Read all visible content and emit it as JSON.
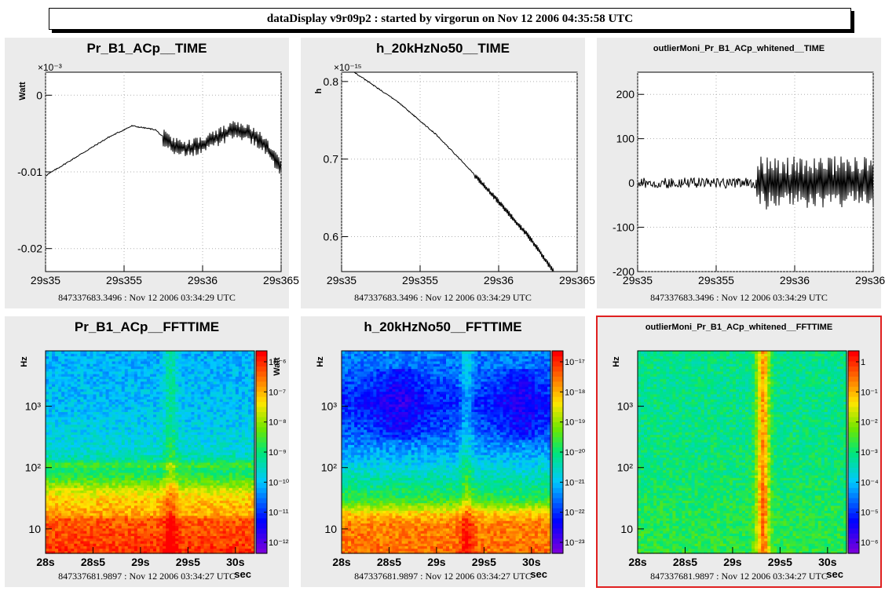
{
  "header": {
    "title": "dataDisplay v9r09p2 : started by virgorun on Nov 12 2006 04:35:58 UTC"
  },
  "colors": {
    "panel_bg": "#ebebeb",
    "frame": "#000000",
    "selected_border": "#e02020",
    "grid": "#b0b0b0"
  },
  "panels": [
    {
      "title": "Pr_B1_ACp__TIME",
      "footer": "847337683.3496 : Nov 12 2006 03:34:29 UTC"
    },
    {
      "title": "h_20kHzNo50__TIME",
      "footer": "847337683.3496 : Nov 12 2006 03:34:29 UTC"
    },
    {
      "title": "outlierMoni_Pr_B1_ACp_whitened__TIME",
      "footer": "847337683.3496 : Nov 12 2006 03:34:29 UTC"
    },
    {
      "title": "Pr_B1_ACp__FFTTIME",
      "footer": "847337681.9897 : Nov 12 2006 03:34:27 UTC"
    },
    {
      "title": "h_20kHzNo50__FFTTIME",
      "footer": "847337681.9897 : Nov 12 2006 03:34:27 UTC"
    },
    {
      "title": "outlierMoni_Pr_B1_ACp_whitened__FFTTIME",
      "footer": "847337681.9897 : Nov 12 2006 03:34:27 UTC"
    }
  ],
  "chart_data": [
    {
      "type": "line",
      "title": "Pr_B1_ACp__TIME",
      "ylabel": "Watt",
      "y_multiplier": "×10⁻³",
      "xlim": [
        29.35,
        29.365
      ],
      "ylim": [
        -0.023,
        0.003
      ],
      "xticks": [
        29.35,
        29.355,
        29.36,
        29.365
      ],
      "xtick_labels": [
        "29s35",
        "29s355",
        "29s36",
        "29s365"
      ],
      "yticks": [
        0,
        -0.01,
        -0.02
      ],
      "ytick_labels": [
        "0",
        "-0.01",
        "-0.02"
      ],
      "grid": true,
      "series": [
        {
          "x": [
            29.35,
            29.352,
            29.354,
            29.3555,
            29.357,
            29.358,
            29.359,
            29.36,
            29.361,
            29.362,
            29.363,
            29.364,
            29.365
          ],
          "y": [
            -0.0105,
            -0.008,
            -0.0055,
            -0.004,
            -0.0045,
            -0.0065,
            -0.007,
            -0.0065,
            -0.0055,
            -0.0045,
            -0.005,
            -0.0065,
            -0.0095
          ],
          "noise_after": 29.3575,
          "noise_amp": 0.0012
        }
      ]
    },
    {
      "type": "line",
      "title": "h_20kHzNo50__TIME",
      "ylabel": "h",
      "y_multiplier": "×10⁻¹⁵",
      "xlim": [
        29.35,
        29.365
      ],
      "ylim": [
        0.555,
        0.812
      ],
      "xticks": [
        29.35,
        29.355,
        29.36,
        29.365
      ],
      "xtick_labels": [
        "29s35",
        "29s355",
        "29s36",
        "29s365"
      ],
      "yticks": [
        0.8,
        0.7,
        0.6
      ],
      "ytick_labels": [
        "0.8",
        "0.7",
        "0.6"
      ],
      "grid": true,
      "series": [
        {
          "x": [
            29.3508,
            29.3535,
            29.356,
            29.358,
            29.36,
            29.362,
            29.3635
          ],
          "y": [
            0.812,
            0.775,
            0.732,
            0.69,
            0.645,
            0.598,
            0.555
          ],
          "noise_after": 29.3585,
          "noise_amp": 0.004
        }
      ]
    },
    {
      "type": "line",
      "title": "outlierMoni_Pr_B1_ACp_whitened__TIME",
      "ylabel": "",
      "xlim": [
        29.35,
        29.365
      ],
      "ylim": [
        -200,
        250
      ],
      "xticks": [
        29.35,
        29.355,
        29.36,
        29.365
      ],
      "xtick_labels": [
        "29s35",
        "29s355",
        "29s36",
        "29s365"
      ],
      "yticks": [
        200,
        100,
        0,
        -100,
        -200
      ],
      "ytick_labels": [
        "200",
        "100",
        "0",
        "-100",
        "-200"
      ],
      "grid": true,
      "series": [
        {
          "x": [
            29.35,
            29.3575,
            29.3576,
            29.365
          ],
          "y": [
            0,
            0,
            0,
            0
          ],
          "noise_before_amp": 12,
          "noise_after": 29.3576,
          "noise_amp": 60
        }
      ]
    },
    {
      "type": "heatmap",
      "title": "Pr_B1_ACp__FFTTIME",
      "ylabel": "Hz",
      "xlabel": "sec",
      "zlabel": "Watt",
      "xlim": [
        28,
        30.2
      ],
      "yscale": "log",
      "ylim": [
        4,
        8000
      ],
      "xticks": [
        28,
        28.5,
        29,
        29.5,
        30
      ],
      "xtick_labels": [
        "28s",
        "28s5",
        "29s",
        "29s5",
        "30s"
      ],
      "yticks": [
        10,
        100,
        1000
      ],
      "ytick_labels": [
        "10",
        "10²",
        "10³"
      ],
      "colorbar_labels": [
        "10⁻⁶",
        "10⁻⁷",
        "10⁻⁸",
        "10⁻⁹",
        "10⁻¹⁰",
        "10⁻¹¹",
        "10⁻¹²"
      ],
      "profile": [
        [
          4,
          0.95
        ],
        [
          15,
          0.9
        ],
        [
          17,
          0.82
        ],
        [
          30,
          0.78
        ],
        [
          45,
          0.7
        ],
        [
          60,
          0.6
        ],
        [
          90,
          0.5
        ],
        [
          110,
          0.58
        ],
        [
          140,
          0.45
        ],
        [
          200,
          0.4
        ],
        [
          500,
          0.37
        ],
        [
          1000,
          0.35
        ],
        [
          8000,
          0.33
        ]
      ]
    },
    {
      "type": "heatmap",
      "title": "h_20kHzNo50__FFTTIME",
      "ylabel": "Hz",
      "xlabel": "sec",
      "xlim": [
        28,
        30.2
      ],
      "yscale": "log",
      "ylim": [
        4,
        8000
      ],
      "xticks": [
        28,
        28.5,
        29,
        29.5,
        30
      ],
      "xtick_labels": [
        "28s",
        "28s5",
        "29s",
        "29s5",
        "30s"
      ],
      "yticks": [
        10,
        100,
        1000
      ],
      "ytick_labels": [
        "10",
        "10²",
        "10³"
      ],
      "colorbar_labels": [
        "10⁻¹⁷",
        "10⁻¹⁸",
        "10⁻¹⁹",
        "10⁻²⁰",
        "10⁻²¹",
        "10⁻²²",
        "10⁻²³"
      ],
      "profile": [
        [
          4,
          0.88
        ],
        [
          12,
          0.86
        ],
        [
          17,
          0.8
        ],
        [
          30,
          0.55
        ],
        [
          80,
          0.42
        ],
        [
          200,
          0.3
        ],
        [
          500,
          0.22
        ],
        [
          1200,
          0.18
        ],
        [
          3000,
          0.24
        ],
        [
          8000,
          0.28
        ]
      ]
    },
    {
      "type": "heatmap",
      "title": "outlierMoni_Pr_B1_ACp_whitened__FFTTIME",
      "ylabel": "Hz",
      "xlabel": "sec",
      "xlim": [
        28,
        30.2
      ],
      "yscale": "log",
      "ylim": [
        4,
        8000
      ],
      "xticks": [
        28,
        28.5,
        29,
        29.5,
        30
      ],
      "xtick_labels": [
        "28s",
        "28s5",
        "29s",
        "29s5",
        "30s"
      ],
      "yticks": [
        10,
        100,
        1000
      ],
      "ytick_labels": [
        "10",
        "10²",
        "10³"
      ],
      "colorbar_labels": [
        "1",
        "10⁻¹",
        "10⁻²",
        "10⁻³",
        "10⁻⁴",
        "10⁻⁵",
        "10⁻⁶"
      ],
      "profile": [
        [
          4,
          0.55
        ],
        [
          20,
          0.53
        ],
        [
          100,
          0.5
        ],
        [
          1000,
          0.48
        ],
        [
          8000,
          0.48
        ]
      ]
    }
  ]
}
